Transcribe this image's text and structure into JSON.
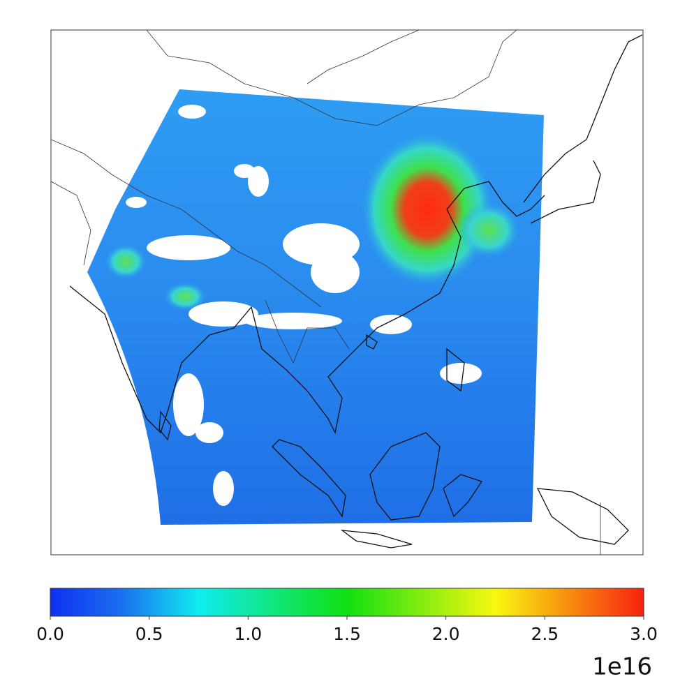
{
  "colorbar": {
    "range": [
      0,
      3
    ],
    "ticks": [
      {
        "value": 0,
        "label": "0.0"
      },
      {
        "value": 0.5,
        "label": "0.5"
      },
      {
        "value": 1,
        "label": "1.0"
      },
      {
        "value": 1.5,
        "label": "1.5"
      },
      {
        "value": 2,
        "label": "2.0"
      },
      {
        "value": 2.5,
        "label": "2.5"
      },
      {
        "value": 3,
        "label": "3.0"
      }
    ],
    "multiplier": "1e16"
  }
}
